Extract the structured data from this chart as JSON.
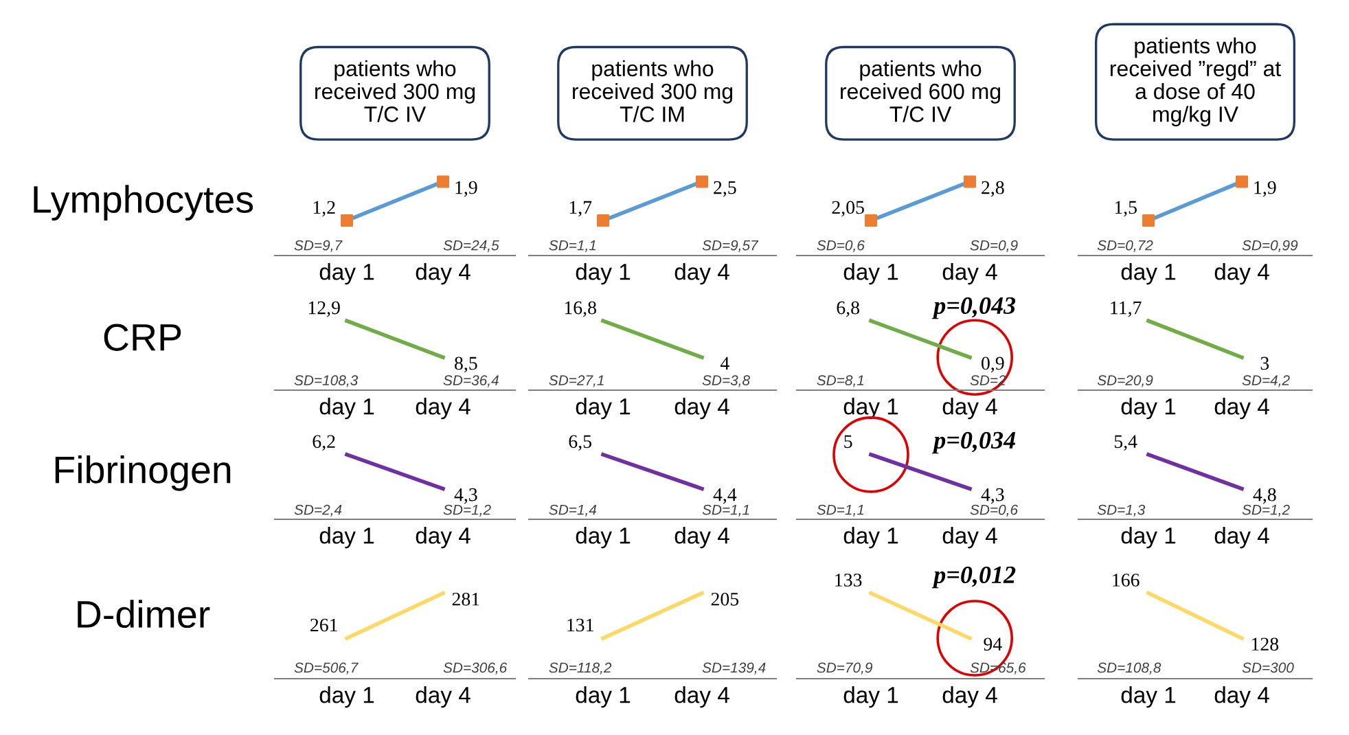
{
  "chart_data": [
    {
      "type": "line",
      "title": "patients who\nreceived 300 mg\nT/C IV",
      "ylabel": "Lymphocytes",
      "categories": [
        "day 1",
        "day 4"
      ],
      "series": [
        {
          "color": "#5b9bd5",
          "values": [
            1.2,
            1.9
          ],
          "value_labels": [
            "1,2",
            "1,9"
          ]
        },
        {
          "type": "scatter",
          "color": "#ed7d31",
          "marker": "square",
          "values": [
            1.2,
            1.9
          ]
        }
      ],
      "annotations": [
        "SD=9,7",
        "SD=24,5"
      ]
    },
    {
      "type": "line",
      "title": "patients who\nreceived 300 mg\nT/C IM",
      "categories": [
        "day 1",
        "day 4"
      ],
      "series": [
        {
          "color": "#5b9bd5",
          "values": [
            1.7,
            2.5
          ],
          "value_labels": [
            "1,7",
            "2,5"
          ]
        },
        {
          "type": "scatter",
          "color": "#ed7d31",
          "marker": "square",
          "values": [
            1.7,
            2.5
          ]
        }
      ],
      "annotations": [
        "SD=1,1",
        "SD=9,57"
      ]
    },
    {
      "type": "line",
      "title": "patients who\nreceived 600 mg\nT/C IV",
      "categories": [
        "day 1",
        "day 4"
      ],
      "series": [
        {
          "color": "#5b9bd5",
          "values": [
            2.05,
            2.8
          ],
          "value_labels": [
            "2,05",
            "2,8"
          ]
        },
        {
          "type": "scatter",
          "color": "#ed7d31",
          "marker": "square",
          "values": [
            2.05,
            2.8
          ]
        }
      ],
      "annotations": [
        "SD=0,6",
        "SD=0,9"
      ]
    },
    {
      "type": "line",
      "title": "patients who\nreceived ”regd” at\na dose of 40\nmg/kg IV",
      "categories": [
        "day 1",
        "day 4"
      ],
      "series": [
        {
          "color": "#5b9bd5",
          "values": [
            1.5,
            1.9
          ],
          "value_labels": [
            "1,5",
            "1,9"
          ]
        },
        {
          "type": "scatter",
          "color": "#ed7d31",
          "marker": "square",
          "values": [
            1.5,
            1.9
          ]
        }
      ],
      "annotations": [
        "SD=0,72",
        "SD=0,99"
      ]
    },
    {
      "type": "line",
      "ylabel": "CRP",
      "categories": [
        "day 1",
        "day 4"
      ],
      "series": [
        {
          "color": "#70ad47",
          "values": [
            12.9,
            8.5
          ],
          "value_labels": [
            "12,9",
            "8,5"
          ]
        }
      ],
      "annotations": [
        "SD=108,3",
        "SD=36,4"
      ]
    },
    {
      "type": "line",
      "categories": [
        "day 1",
        "day 4"
      ],
      "series": [
        {
          "color": "#70ad47",
          "values": [
            16.8,
            4
          ],
          "value_labels": [
            "16,8",
            "4"
          ]
        }
      ],
      "annotations": [
        "SD=27,1",
        "SD=3,8"
      ]
    },
    {
      "type": "line",
      "categories": [
        "day 1",
        "day 4"
      ],
      "series": [
        {
          "color": "#70ad47",
          "values": [
            6.8,
            0.9
          ],
          "value_labels": [
            "6,8",
            "0,9"
          ]
        }
      ],
      "annotations": [
        "SD=8,1",
        "SD=2",
        "p=0,043"
      ]
    },
    {
      "type": "line",
      "categories": [
        "day 1",
        "day 4"
      ],
      "series": [
        {
          "color": "#70ad47",
          "values": [
            11.7,
            3
          ],
          "value_labels": [
            "11,7",
            "3"
          ]
        }
      ],
      "annotations": [
        "SD=20,9",
        "SD=4,2"
      ]
    },
    {
      "type": "line",
      "ylabel": "Fibrinogen",
      "categories": [
        "day 1",
        "day 4"
      ],
      "series": [
        {
          "color": "#7030a0",
          "values": [
            6.2,
            4.3
          ],
          "value_labels": [
            "6,2",
            "4,3"
          ]
        }
      ],
      "annotations": [
        "SD=2,4",
        "SD=1,2"
      ]
    },
    {
      "type": "line",
      "categories": [
        "day 1",
        "day 4"
      ],
      "series": [
        {
          "color": "#7030a0",
          "values": [
            6.5,
            4.4
          ],
          "value_labels": [
            "6,5",
            "4,4"
          ]
        }
      ],
      "annotations": [
        "SD=1,4",
        "SD=1,1"
      ]
    },
    {
      "type": "line",
      "categories": [
        "day 1",
        "day 4"
      ],
      "series": [
        {
          "color": "#7030a0",
          "values": [
            5,
            4.3
          ],
          "value_labels": [
            "5",
            "4,3"
          ]
        }
      ],
      "annotations": [
        "SD=1,1",
        "SD=0,6",
        "p=0,034"
      ]
    },
    {
      "type": "line",
      "categories": [
        "day 1",
        "day 4"
      ],
      "series": [
        {
          "color": "#7030a0",
          "values": [
            5.4,
            4.8
          ],
          "value_labels": [
            "5,4",
            "4,8"
          ]
        }
      ],
      "annotations": [
        "SD=1,3",
        "SD=1,2"
      ]
    },
    {
      "type": "line",
      "ylabel": "D-dimer",
      "categories": [
        "day 1",
        "day 4"
      ],
      "series": [
        {
          "color": "#ffd966",
          "values": [
            261,
            281
          ],
          "value_labels": [
            "261",
            "281"
          ]
        }
      ],
      "annotations": [
        "SD=506,7",
        "SD=306,6"
      ]
    },
    {
      "type": "line",
      "categories": [
        "day 1",
        "day 4"
      ],
      "series": [
        {
          "color": "#ffd966",
          "values": [
            131,
            205
          ],
          "value_labels": [
            "131",
            "205"
          ]
        }
      ],
      "annotations": [
        "SD=118,2",
        "SD=139,4"
      ]
    },
    {
      "type": "line",
      "categories": [
        "day 1",
        "day 4"
      ],
      "series": [
        {
          "color": "#ffd966",
          "values": [
            133,
            94
          ],
          "value_labels": [
            "133",
            "94"
          ]
        }
      ],
      "annotations": [
        "SD=70,9",
        "SD=65,6",
        "p=0,012"
      ]
    },
    {
      "type": "line",
      "categories": [
        "day 1",
        "day 4"
      ],
      "series": [
        {
          "color": "#ffd966",
          "values": [
            166,
            128
          ],
          "value_labels": [
            "166",
            "128"
          ]
        }
      ],
      "annotations": [
        "SD=108,8",
        "SD=300"
      ]
    }
  ]
}
